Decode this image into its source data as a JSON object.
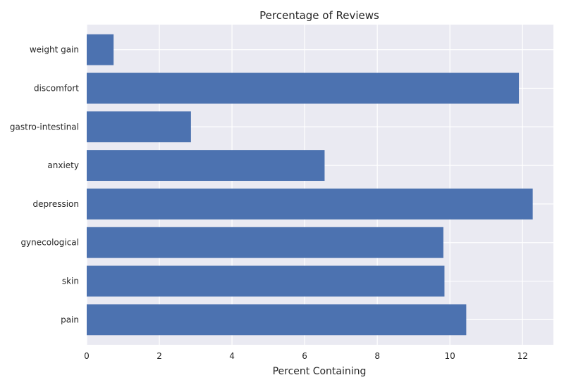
{
  "chart_data": {
    "type": "bar",
    "orientation": "horizontal",
    "title": "Percentage of Reviews",
    "xlabel": "Percent Containing",
    "ylabel": "",
    "categories": [
      "pain",
      "skin",
      "gynecological",
      "depression",
      "anxiety",
      "gastro-intestinal",
      "discomfort",
      "weight gain"
    ],
    "values": [
      10.45,
      9.85,
      9.82,
      12.28,
      6.55,
      2.87,
      11.9,
      0.74
    ],
    "xlim": [
      0,
      12.85
    ],
    "xticks": [
      0,
      2,
      4,
      6,
      8,
      10,
      12
    ],
    "grid": true,
    "colors": {
      "bar": "#4c72b0",
      "plot_background": "#eaeaf2",
      "grid": "#ffffff"
    }
  }
}
